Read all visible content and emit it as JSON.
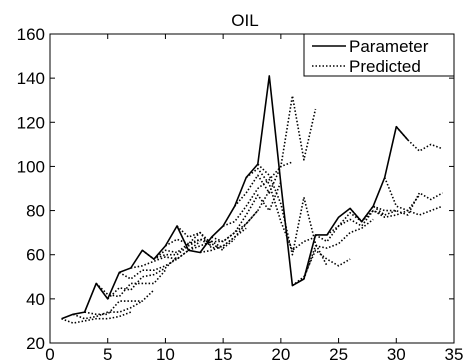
{
  "chart_data": {
    "type": "line",
    "title": "OIL",
    "xlabel": "",
    "ylabel": "",
    "xlim": [
      0,
      35
    ],
    "ylim": [
      20,
      160
    ],
    "xticks": [
      0,
      5,
      10,
      15,
      20,
      25,
      30,
      35
    ],
    "yticks": [
      20,
      40,
      60,
      80,
      100,
      120,
      140,
      160
    ],
    "grid": false,
    "legend_position": "top-right",
    "legend": [
      {
        "label": "Parameter",
        "style": "solid"
      },
      {
        "label": "Predicted",
        "style": "dotted"
      }
    ],
    "series": [
      {
        "name": "Parameter",
        "style": "solid",
        "color": "#000000",
        "x": [
          1,
          2,
          3,
          4,
          5,
          6,
          7,
          8,
          9,
          10,
          11,
          12,
          13,
          14,
          15,
          16,
          17,
          18,
          19,
          20,
          21,
          22,
          23,
          24,
          25,
          26,
          27,
          28,
          29,
          30,
          31
        ],
        "y": [
          31,
          33,
          34,
          47,
          40,
          52,
          54,
          62,
          58,
          64,
          73,
          62,
          61,
          68,
          73,
          82,
          95,
          101,
          141,
          92,
          46,
          49,
          69,
          69,
          77,
          81,
          75,
          82,
          95,
          118,
          112
        ]
      },
      {
        "name": "Predicted",
        "style": "dotted",
        "color": "#000000",
        "segments": [
          {
            "x": [
              1,
              2,
              3,
              4,
              5,
              6,
              7
            ],
            "y": [
              31,
              29,
              30,
              31,
              31,
              32,
              34
            ]
          },
          {
            "x": [
              2,
              3,
              4,
              5,
              6,
              7,
              8
            ],
            "y": [
              33,
              31,
              32,
              34,
              34,
              36,
              39
            ]
          },
          {
            "x": [
              3,
              4,
              5,
              6,
              7,
              8,
              9
            ],
            "y": [
              34,
              33,
              33,
              39,
              39,
              39,
              44
            ]
          },
          {
            "x": [
              4,
              5,
              6,
              7,
              8,
              9,
              10
            ],
            "y": [
              47,
              42,
              41,
              47,
              47,
              47,
              53
            ]
          },
          {
            "x": [
              5,
              6,
              7,
              8,
              9,
              10,
              11
            ],
            "y": [
              40,
              45,
              44,
              50,
              51,
              54,
              59
            ]
          },
          {
            "x": [
              6,
              7,
              8,
              9,
              10,
              11,
              12
            ],
            "y": [
              52,
              49,
              53,
              53,
              55,
              58,
              62
            ]
          },
          {
            "x": [
              7,
              8,
              9,
              10,
              11,
              12,
              13
            ],
            "y": [
              54,
              55,
              57,
              59,
              58,
              62,
              66
            ]
          },
          {
            "x": [
              8,
              9,
              10,
              11,
              12,
              13,
              14
            ],
            "y": [
              62,
              58,
              60,
              60,
              64,
              67,
              64
            ]
          },
          {
            "x": [
              9,
              10,
              11,
              12,
              13,
              14,
              15
            ],
            "y": [
              58,
              62,
              61,
              65,
              70,
              65,
              62
            ]
          },
          {
            "x": [
              10,
              11,
              12,
              13,
              14,
              15,
              16
            ],
            "y": [
              64,
              67,
              65,
              67,
              66,
              63,
              67
            ]
          },
          {
            "x": [
              11,
              12,
              13,
              14,
              15,
              16,
              17
            ],
            "y": [
              73,
              68,
              70,
              63,
              64,
              68,
              72
            ]
          },
          {
            "x": [
              12,
              13,
              14,
              15,
              16,
              17,
              18
            ],
            "y": [
              62,
              64,
              66,
              66,
              70,
              74,
              80
            ]
          },
          {
            "x": [
              13,
              14,
              15,
              16,
              17,
              18,
              19
            ],
            "y": [
              61,
              62,
              64,
              68,
              74,
              80,
              89
            ]
          },
          {
            "x": [
              14,
              15,
              16,
              17,
              18,
              19,
              20
            ],
            "y": [
              68,
              66,
              70,
              78,
              87,
              80,
              93
            ]
          },
          {
            "x": [
              15,
              16,
              17,
              18,
              19,
              20,
              21
            ],
            "y": [
              73,
              75,
              82,
              90,
              94,
              100,
              102
            ]
          },
          {
            "x": [
              16,
              17,
              18,
              19,
              20,
              21,
              22,
              23
            ],
            "y": [
              82,
              88,
              96,
              88,
              100,
              132,
              103,
              126
            ]
          },
          {
            "x": [
              17,
              18,
              19,
              20,
              21,
              22,
              23
            ],
            "y": [
              95,
              99,
              92,
              75,
              62,
              66,
              68
            ]
          },
          {
            "x": [
              18,
              19,
              20,
              21,
              22,
              23,
              24
            ],
            "y": [
              101,
              96,
              83,
              60,
              86,
              65,
              55
            ]
          },
          {
            "x": [
              21,
              22,
              23,
              24,
              25,
              26
            ],
            "y": [
              46,
              50,
              62,
              58,
              55,
              58
            ]
          },
          {
            "x": [
              22,
              23,
              24,
              25,
              26,
              27,
              28
            ],
            "y": [
              49,
              64,
              63,
              65,
              70,
              72,
              76
            ]
          },
          {
            "x": [
              23,
              24,
              25,
              26,
              27,
              28,
              29
            ],
            "y": [
              69,
              66,
              73,
              76,
              73,
              80,
              78
            ]
          },
          {
            "x": [
              24,
              25,
              26,
              27,
              28,
              29,
              30
            ],
            "y": [
              69,
              73,
              79,
              75,
              82,
              78,
              80
            ]
          },
          {
            "x": [
              26,
              27,
              28,
              29,
              30,
              31,
              32
            ],
            "y": [
              81,
              75,
              80,
              77,
              78,
              80,
              87
            ]
          },
          {
            "x": [
              28,
              29,
              30,
              31,
              32,
              33,
              34
            ],
            "y": [
              82,
              80,
              80,
              78,
              88,
              85,
              88
            ]
          },
          {
            "x": [
              29,
              30,
              31,
              32,
              33,
              34
            ],
            "y": [
              95,
              82,
              80,
              78,
              80,
              82
            ]
          },
          {
            "x": [
              30,
              31,
              32,
              33,
              34
            ],
            "y": [
              118,
              112,
              107,
              110,
              108
            ]
          }
        ]
      }
    ]
  }
}
